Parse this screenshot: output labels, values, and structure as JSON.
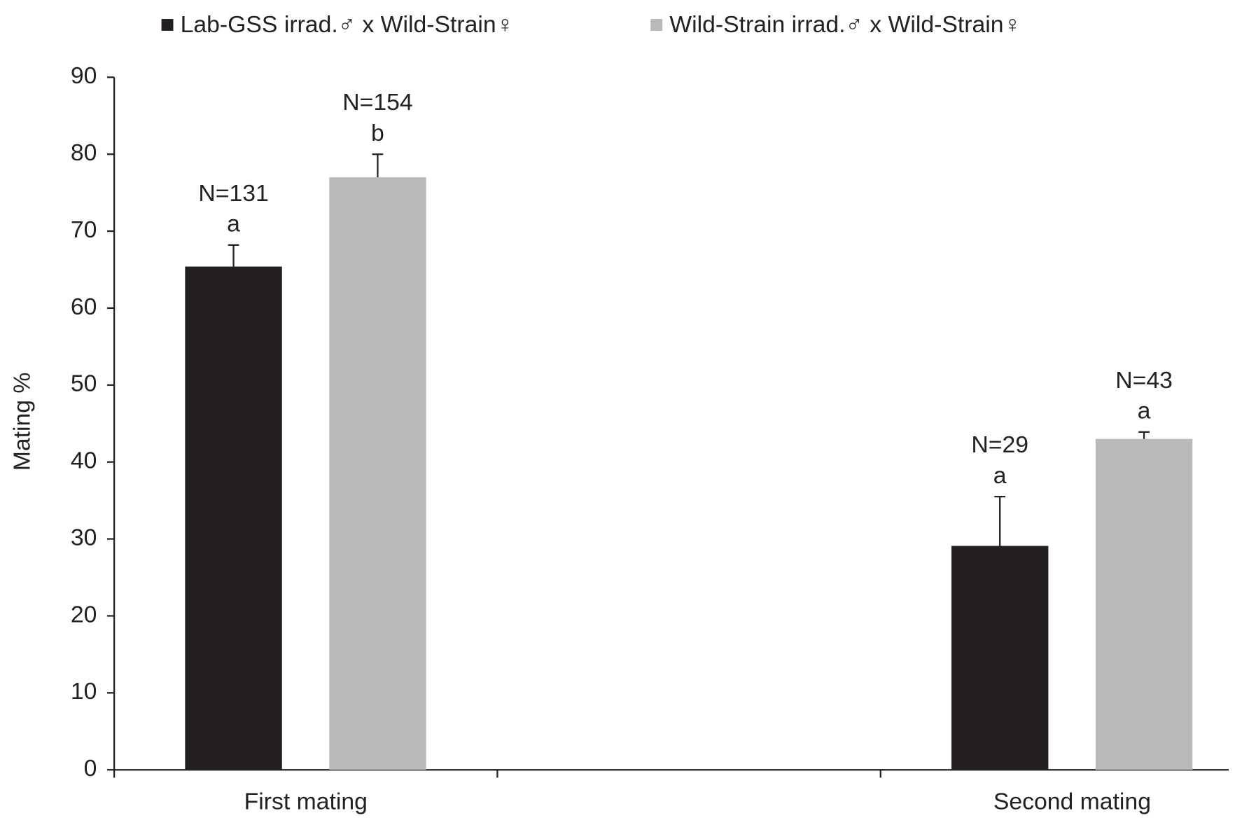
{
  "chart_data": {
    "type": "bar",
    "y_label": "Mating %",
    "categories": [
      "First mating",
      null,
      "Second mating"
    ],
    "series": [
      {
        "name": "Lab-GSS irrad.♂ x Wild-Strain♀",
        "color": "#231f20",
        "values": [
          65.4,
          null,
          29.1
        ],
        "errors": [
          2.8,
          null,
          6.4
        ],
        "sample_sizes": [
          "N=131",
          null,
          "N=29"
        ],
        "letters": [
          "a",
          null,
          "a"
        ]
      },
      {
        "name": "Wild-Strain irrad.♂ x Wild-Strain♀",
        "color": "#b9b9b9",
        "values": [
          77.0,
          null,
          43.0
        ],
        "errors": [
          3.0,
          null,
          0.9
        ],
        "sample_sizes": [
          "N=154",
          null,
          "N=43"
        ],
        "letters": [
          "b",
          null,
          "a"
        ]
      }
    ],
    "ylim": [
      0,
      90
    ],
    "yticks": [
      0,
      10,
      20,
      30,
      40,
      50,
      60,
      70,
      80,
      90
    ],
    "legend": "top",
    "grid": false
  }
}
